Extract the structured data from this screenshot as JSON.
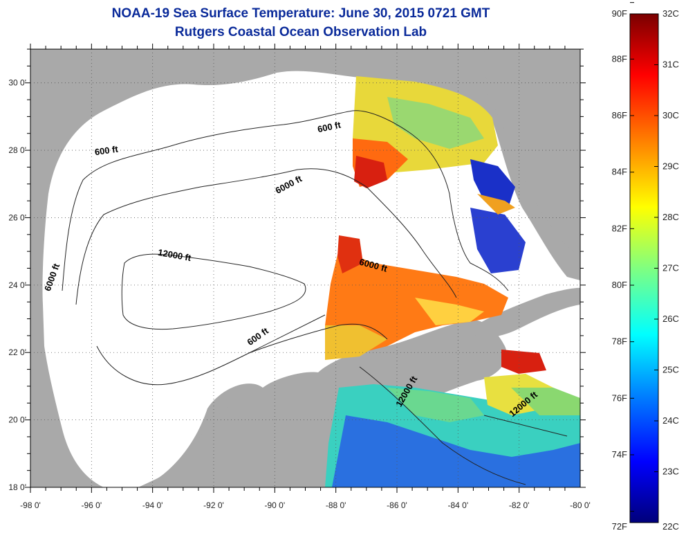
{
  "title": "NOAA-19 Sea Surface Temperature:  June 30, 2015 0721 GMT",
  "subtitle": "Rutgers Coastal Ocean Observation Lab",
  "map": {
    "lat_labels": [
      "30 0'",
      "28 0'",
      "26 0'",
      "24 0'",
      "22 0'",
      "20 0'",
      "18 0'"
    ],
    "lon_labels": [
      "-98 0'",
      "-96 0'",
      "-94 0'",
      "-92 0'",
      "-90 0'",
      "-88 0'",
      "-86 0'",
      "-84 0'",
      "-82 0'",
      "-80 0'"
    ],
    "lat_range": [
      18,
      31
    ],
    "lon_range": [
      -98,
      -80
    ],
    "land_color": "#a9a9a9",
    "no_data_color": "#ffffff",
    "contour_labels": [
      {
        "text": "600 ft",
        "lon": -88.2,
        "lat": 28.6
      },
      {
        "text": "600 ft",
        "lon": -95.5,
        "lat": 27.9
      },
      {
        "text": "6000 ft",
        "lon": -89.5,
        "lat": 26.9
      },
      {
        "text": "12000 ft",
        "lon": -93.3,
        "lat": 24.8
      },
      {
        "text": "6000 ft",
        "lon": -97.2,
        "lat": 24.2
      },
      {
        "text": "6000 ft",
        "lon": -86.8,
        "lat": 24.5
      },
      {
        "text": "600 ft",
        "lon": -90.5,
        "lat": 22.4
      },
      {
        "text": "12000 ft",
        "lon": -85.6,
        "lat": 20.8
      },
      {
        "text": "12000 ft",
        "lon": -81.8,
        "lat": 20.4
      }
    ]
  },
  "colorbar": {
    "min_c": 22,
    "max_c": 32,
    "f_labels": [
      "90F",
      "88F",
      "86F",
      "84F",
      "82F",
      "80F",
      "78F",
      "76F",
      "74F",
      "72F"
    ],
    "c_labels": [
      "32C",
      "31C",
      "30C",
      "29C",
      "28C",
      "27C",
      "26C",
      "25C",
      "24C",
      "23C",
      "22C"
    ],
    "colors": [
      "#00007a",
      "#0000ff",
      "#0080ff",
      "#00ffff",
      "#80ff80",
      "#ffff00",
      "#ff8000",
      "#ff0000",
      "#7a0000"
    ]
  }
}
